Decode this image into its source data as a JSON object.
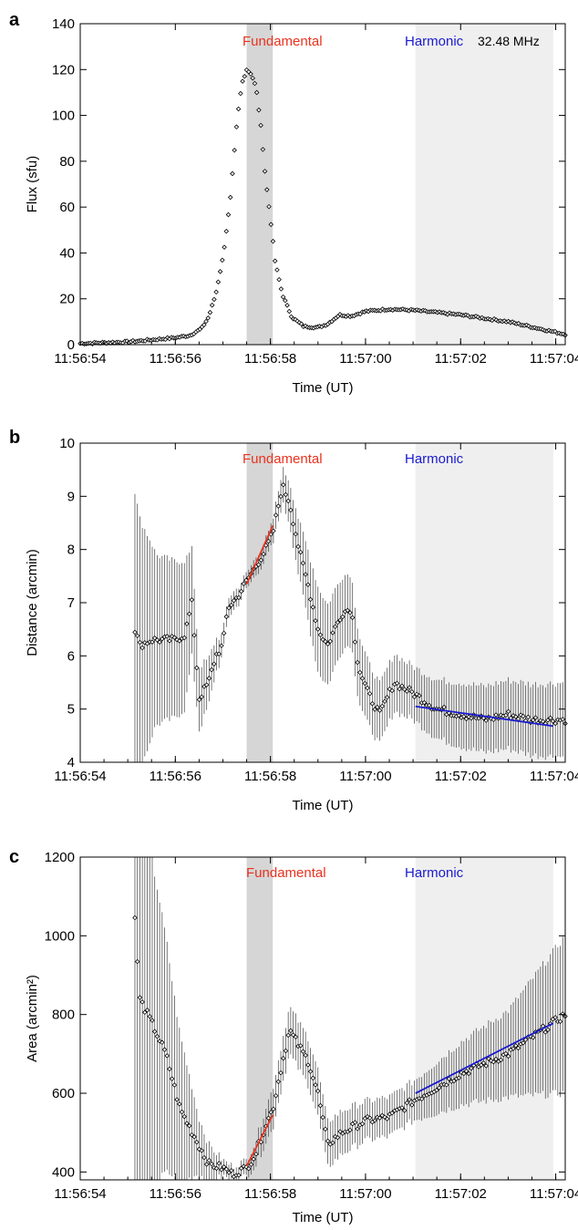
{
  "figure": {
    "shade_colors": {
      "fundamental": "#d6d6d6",
      "harmonic": "#efefef"
    },
    "series_colors": {
      "fundamental": "#e8321e",
      "harmonic": "#1a1ad0"
    }
  },
  "chart_data": [
    {
      "panel": "a",
      "type": "scatter",
      "xlabel": "Time (UT)",
      "ylabel": "Flux (sfu)",
      "xlim": [
        0,
        10.2
      ],
      "ylim": [
        0,
        140
      ],
      "x_ticks": [
        0,
        2,
        4,
        6,
        8,
        10
      ],
      "x_tick_labels": [
        "11:56:54",
        "11:56:56",
        "11:56:58",
        "11:57:00",
        "11:57:02",
        "11:57:04"
      ],
      "y_ticks": [
        0,
        20,
        40,
        60,
        80,
        100,
        120,
        140
      ],
      "bands": [
        {
          "label": "Fundamental",
          "x0": 3.5,
          "x1": 4.05,
          "color": "fundamental"
        },
        {
          "label": "Harmonic",
          "x0": 7.05,
          "x1": 9.95,
          "color": "harmonic"
        }
      ],
      "annotation": "32.48 MHz",
      "flux_profile": [
        [
          0,
          0.5
        ],
        [
          1,
          1.2
        ],
        [
          2,
          3
        ],
        [
          2.3,
          4
        ],
        [
          2.55,
          7
        ],
        [
          2.7,
          12
        ],
        [
          2.85,
          22
        ],
        [
          3.0,
          38
        ],
        [
          3.15,
          62
        ],
        [
          3.3,
          98
        ],
        [
          3.4,
          114
        ],
        [
          3.5,
          120
        ],
        [
          3.6,
          118
        ],
        [
          3.7,
          112
        ],
        [
          3.8,
          95
        ],
        [
          3.9,
          72
        ],
        [
          4.0,
          55
        ],
        [
          4.1,
          36
        ],
        [
          4.25,
          22
        ],
        [
          4.45,
          12
        ],
        [
          4.7,
          8
        ],
        [
          5.0,
          7.5
        ],
        [
          5.2,
          9
        ],
        [
          5.45,
          13
        ],
        [
          5.7,
          12.5
        ],
        [
          6.0,
          14.5
        ],
        [
          6.5,
          15.5
        ],
        [
          7.0,
          15
        ],
        [
          8.0,
          13
        ],
        [
          9.0,
          10
        ],
        [
          10.2,
          4.5
        ]
      ],
      "n_points": 240
    },
    {
      "panel": "b",
      "type": "scatter",
      "xlabel": "Time (UT)",
      "ylabel": "Distance (arcmin)",
      "xlim": [
        0,
        10.2
      ],
      "ylim": [
        4,
        10
      ],
      "x_ticks": [
        0,
        2,
        4,
        6,
        8,
        10
      ],
      "x_tick_labels": [
        "11:56:54",
        "11:56:56",
        "11:56:58",
        "11:57:00",
        "11:57:02",
        "11:57:04"
      ],
      "y_ticks": [
        4,
        5,
        6,
        7,
        8,
        9,
        10
      ],
      "bands": [
        {
          "label": "Fundamental",
          "x0": 3.5,
          "x1": 4.05,
          "color": "fundamental"
        },
        {
          "label": "Harmonic",
          "x0": 7.05,
          "x1": 9.95,
          "color": "harmonic"
        }
      ],
      "profile": [
        [
          1.15,
          6.5
        ],
        [
          1.25,
          6.2
        ],
        [
          1.5,
          6.3
        ],
        [
          2.0,
          6.3
        ],
        [
          2.2,
          6.4
        ],
        [
          2.35,
          7.0
        ],
        [
          2.5,
          5.2
        ],
        [
          2.7,
          5.5
        ],
        [
          2.85,
          6.0
        ],
        [
          3.0,
          6.2
        ],
        [
          3.1,
          6.9
        ],
        [
          3.3,
          7.1
        ],
        [
          3.5,
          7.4
        ],
        [
          3.7,
          7.7
        ],
        [
          3.9,
          8.0
        ],
        [
          4.05,
          8.3
        ],
        [
          4.25,
          9.2
        ],
        [
          4.4,
          8.9
        ],
        [
          4.6,
          8.0
        ],
        [
          4.8,
          7.3
        ],
        [
          5.0,
          6.5
        ],
        [
          5.2,
          6.2
        ],
        [
          5.5,
          6.8
        ],
        [
          5.7,
          6.9
        ],
        [
          5.85,
          5.8
        ],
        [
          6.05,
          5.3
        ],
        [
          6.3,
          4.9
        ],
        [
          6.6,
          5.5
        ],
        [
          7.0,
          5.3
        ],
        [
          7.5,
          5.0
        ],
        [
          8.0,
          4.9
        ],
        [
          8.5,
          4.8
        ],
        [
          9.0,
          4.9
        ],
        [
          9.5,
          4.8
        ],
        [
          10.2,
          4.8
        ]
      ],
      "error_profile": [
        [
          1.15,
          2.6
        ],
        [
          1.6,
          1.6
        ],
        [
          2.2,
          1.4
        ],
        [
          2.5,
          0.6
        ],
        [
          3.0,
          0.2
        ],
        [
          3.5,
          0.15
        ],
        [
          4.0,
          0.2
        ],
        [
          4.4,
          0.4
        ],
        [
          5.0,
          0.8
        ],
        [
          6.0,
          0.6
        ],
        [
          7.0,
          0.5
        ],
        [
          8.0,
          0.6
        ],
        [
          10.2,
          0.7
        ]
      ],
      "n_points": 175,
      "fits": [
        {
          "name": "Fundamental",
          "color": "fundamental",
          "points": [
            [
              3.5,
              7.35
            ],
            [
              4.05,
              8.45
            ]
          ]
        },
        {
          "name": "Harmonic",
          "color": "harmonic",
          "points": [
            [
              7.05,
              5.05
            ],
            [
              9.95,
              4.68
            ]
          ]
        }
      ]
    },
    {
      "panel": "c",
      "type": "scatter",
      "xlabel": "Time (UT)",
      "ylabel": "Area (arcmin²)",
      "xlim": [
        0,
        10.2
      ],
      "ylim": [
        380,
        1200
      ],
      "x_ticks": [
        0,
        2,
        4,
        6,
        8,
        10
      ],
      "x_tick_labels": [
        "11:56:54",
        "11:56:56",
        "11:56:58",
        "11:57:00",
        "11:57:02",
        "11:57:04"
      ],
      "y_ticks": [
        400,
        600,
        800,
        1000,
        1200
      ],
      "bands": [
        {
          "label": "Fundamental",
          "x0": 3.5,
          "x1": 4.05,
          "color": "fundamental"
        },
        {
          "label": "Harmonic",
          "x0": 7.05,
          "x1": 9.95,
          "color": "harmonic"
        }
      ],
      "profile": [
        [
          1.15,
          1040
        ],
        [
          1.25,
          840
        ],
        [
          1.5,
          780
        ],
        [
          1.8,
          700
        ],
        [
          2.1,
          560
        ],
        [
          2.4,
          490
        ],
        [
          2.7,
          420
        ],
        [
          3.0,
          410
        ],
        [
          3.2,
          395
        ],
        [
          3.5,
          410
        ],
        [
          3.7,
          450
        ],
        [
          3.9,
          520
        ],
        [
          4.05,
          560
        ],
        [
          4.2,
          650
        ],
        [
          4.4,
          760
        ],
        [
          4.6,
          720
        ],
        [
          4.8,
          680
        ],
        [
          5.0,
          600
        ],
        [
          5.2,
          470
        ],
        [
          5.5,
          500
        ],
        [
          6.0,
          530
        ],
        [
          6.5,
          540
        ],
        [
          7.0,
          580
        ],
        [
          8.0,
          650
        ],
        [
          9.0,
          700
        ],
        [
          10.2,
          800
        ]
      ],
      "error_profile": [
        [
          1.15,
          700
        ],
        [
          1.5,
          420
        ],
        [
          2.0,
          220
        ],
        [
          2.5,
          70
        ],
        [
          3.0,
          20
        ],
        [
          3.5,
          20
        ],
        [
          4.0,
          50
        ],
        [
          4.4,
          60
        ],
        [
          5.0,
          60
        ],
        [
          6.0,
          50
        ],
        [
          7.0,
          50
        ],
        [
          8.0,
          80
        ],
        [
          9.0,
          110
        ],
        [
          10.2,
          200
        ]
      ],
      "n_points": 175,
      "fits": [
        {
          "name": "Fundamental",
          "color": "fundamental",
          "points": [
            [
              3.5,
              415
            ],
            [
              4.05,
              545
            ]
          ]
        },
        {
          "name": "Harmonic",
          "color": "harmonic",
          "points": [
            [
              7.05,
              600
            ],
            [
              9.95,
              778
            ]
          ]
        }
      ]
    }
  ]
}
